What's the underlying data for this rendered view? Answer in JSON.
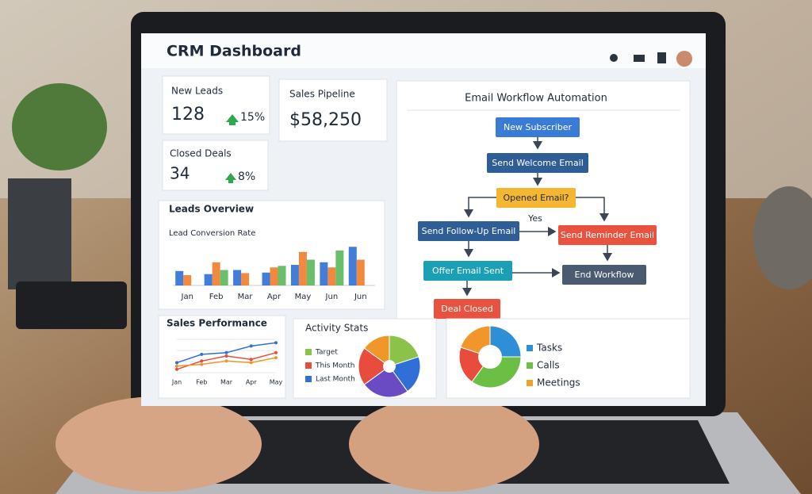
{
  "header": {
    "title": "CRM Dashboard"
  },
  "kpis": [
    {
      "label": "New Leads",
      "value": "128",
      "change": "15%"
    },
    {
      "label": "Sales Pipeline",
      "value": "$58,250"
    },
    {
      "label": "Closed Deals",
      "value": "34",
      "change": "8%"
    }
  ],
  "leads_overview": {
    "title": "Leads Overview",
    "subtitle": "Lead Conversion Rate",
    "categories": [
      "Jan",
      "Feb",
      "Mar",
      "Apr",
      "May",
      "Jun",
      "Jun"
    ],
    "series": [
      {
        "color": "#2f6fd6",
        "values": [
          28,
          22,
          30,
          25,
          40,
          45,
          75
        ]
      },
      {
        "color": "#f07d2a",
        "values": [
          20,
          45,
          24,
          35,
          65,
          35,
          50
        ]
      },
      {
        "color": "#5bb85c",
        "values": [
          null,
          30,
          null,
          38,
          50,
          68,
          null
        ]
      }
    ]
  },
  "workflow": {
    "title": "Email Workflow Automation",
    "nodes": [
      "New Subscriber",
      "Send Welcome Email",
      "Opened Email?",
      "Send Follow-Up Email",
      "Send Reminder Email",
      "Offer Email Sent",
      "End Workflow",
      "Deal Closed"
    ],
    "edge_label": "Yes"
  },
  "sales_performance": {
    "title": "Sales Performance",
    "categories": [
      "Jan",
      "Feb",
      "Mar",
      "Apr",
      "May"
    ],
    "series": [
      {
        "color": "#2f6fd6",
        "values": [
          30,
          55,
          60,
          80,
          90
        ]
      },
      {
        "color": "#e84c3d",
        "values": [
          10,
          35,
          50,
          40,
          60
        ]
      },
      {
        "color": "#f0962a",
        "values": [
          20,
          25,
          35,
          30,
          45
        ]
      }
    ]
  },
  "activity_stats": {
    "title": "Activity Stats",
    "legend": [
      {
        "name": "Target",
        "color": "#8bc34a"
      },
      {
        "name": "This Month",
        "color": "#e84c3d"
      },
      {
        "name": "Last Month",
        "color": "#2f6fd6"
      }
    ],
    "pie": {
      "values": [
        20,
        20,
        25,
        20,
        15
      ],
      "colors": [
        "#8bc34a",
        "#2f6fd6",
        "#6a4bc4",
        "#e84c3d",
        "#f0962a"
      ]
    }
  },
  "tasks_breakdown": {
    "legend": [
      {
        "name": "Tasks",
        "color": "#2f8fd6"
      },
      {
        "name": "Calls",
        "color": "#6cbf45"
      },
      {
        "name": "Meetings",
        "color": "#f0a22a"
      }
    ],
    "pie": {
      "values": [
        25,
        35,
        20,
        20
      ],
      "colors": [
        "#2f8fd6",
        "#6cbf45",
        "#e84c3d",
        "#f0962a"
      ]
    }
  }
}
